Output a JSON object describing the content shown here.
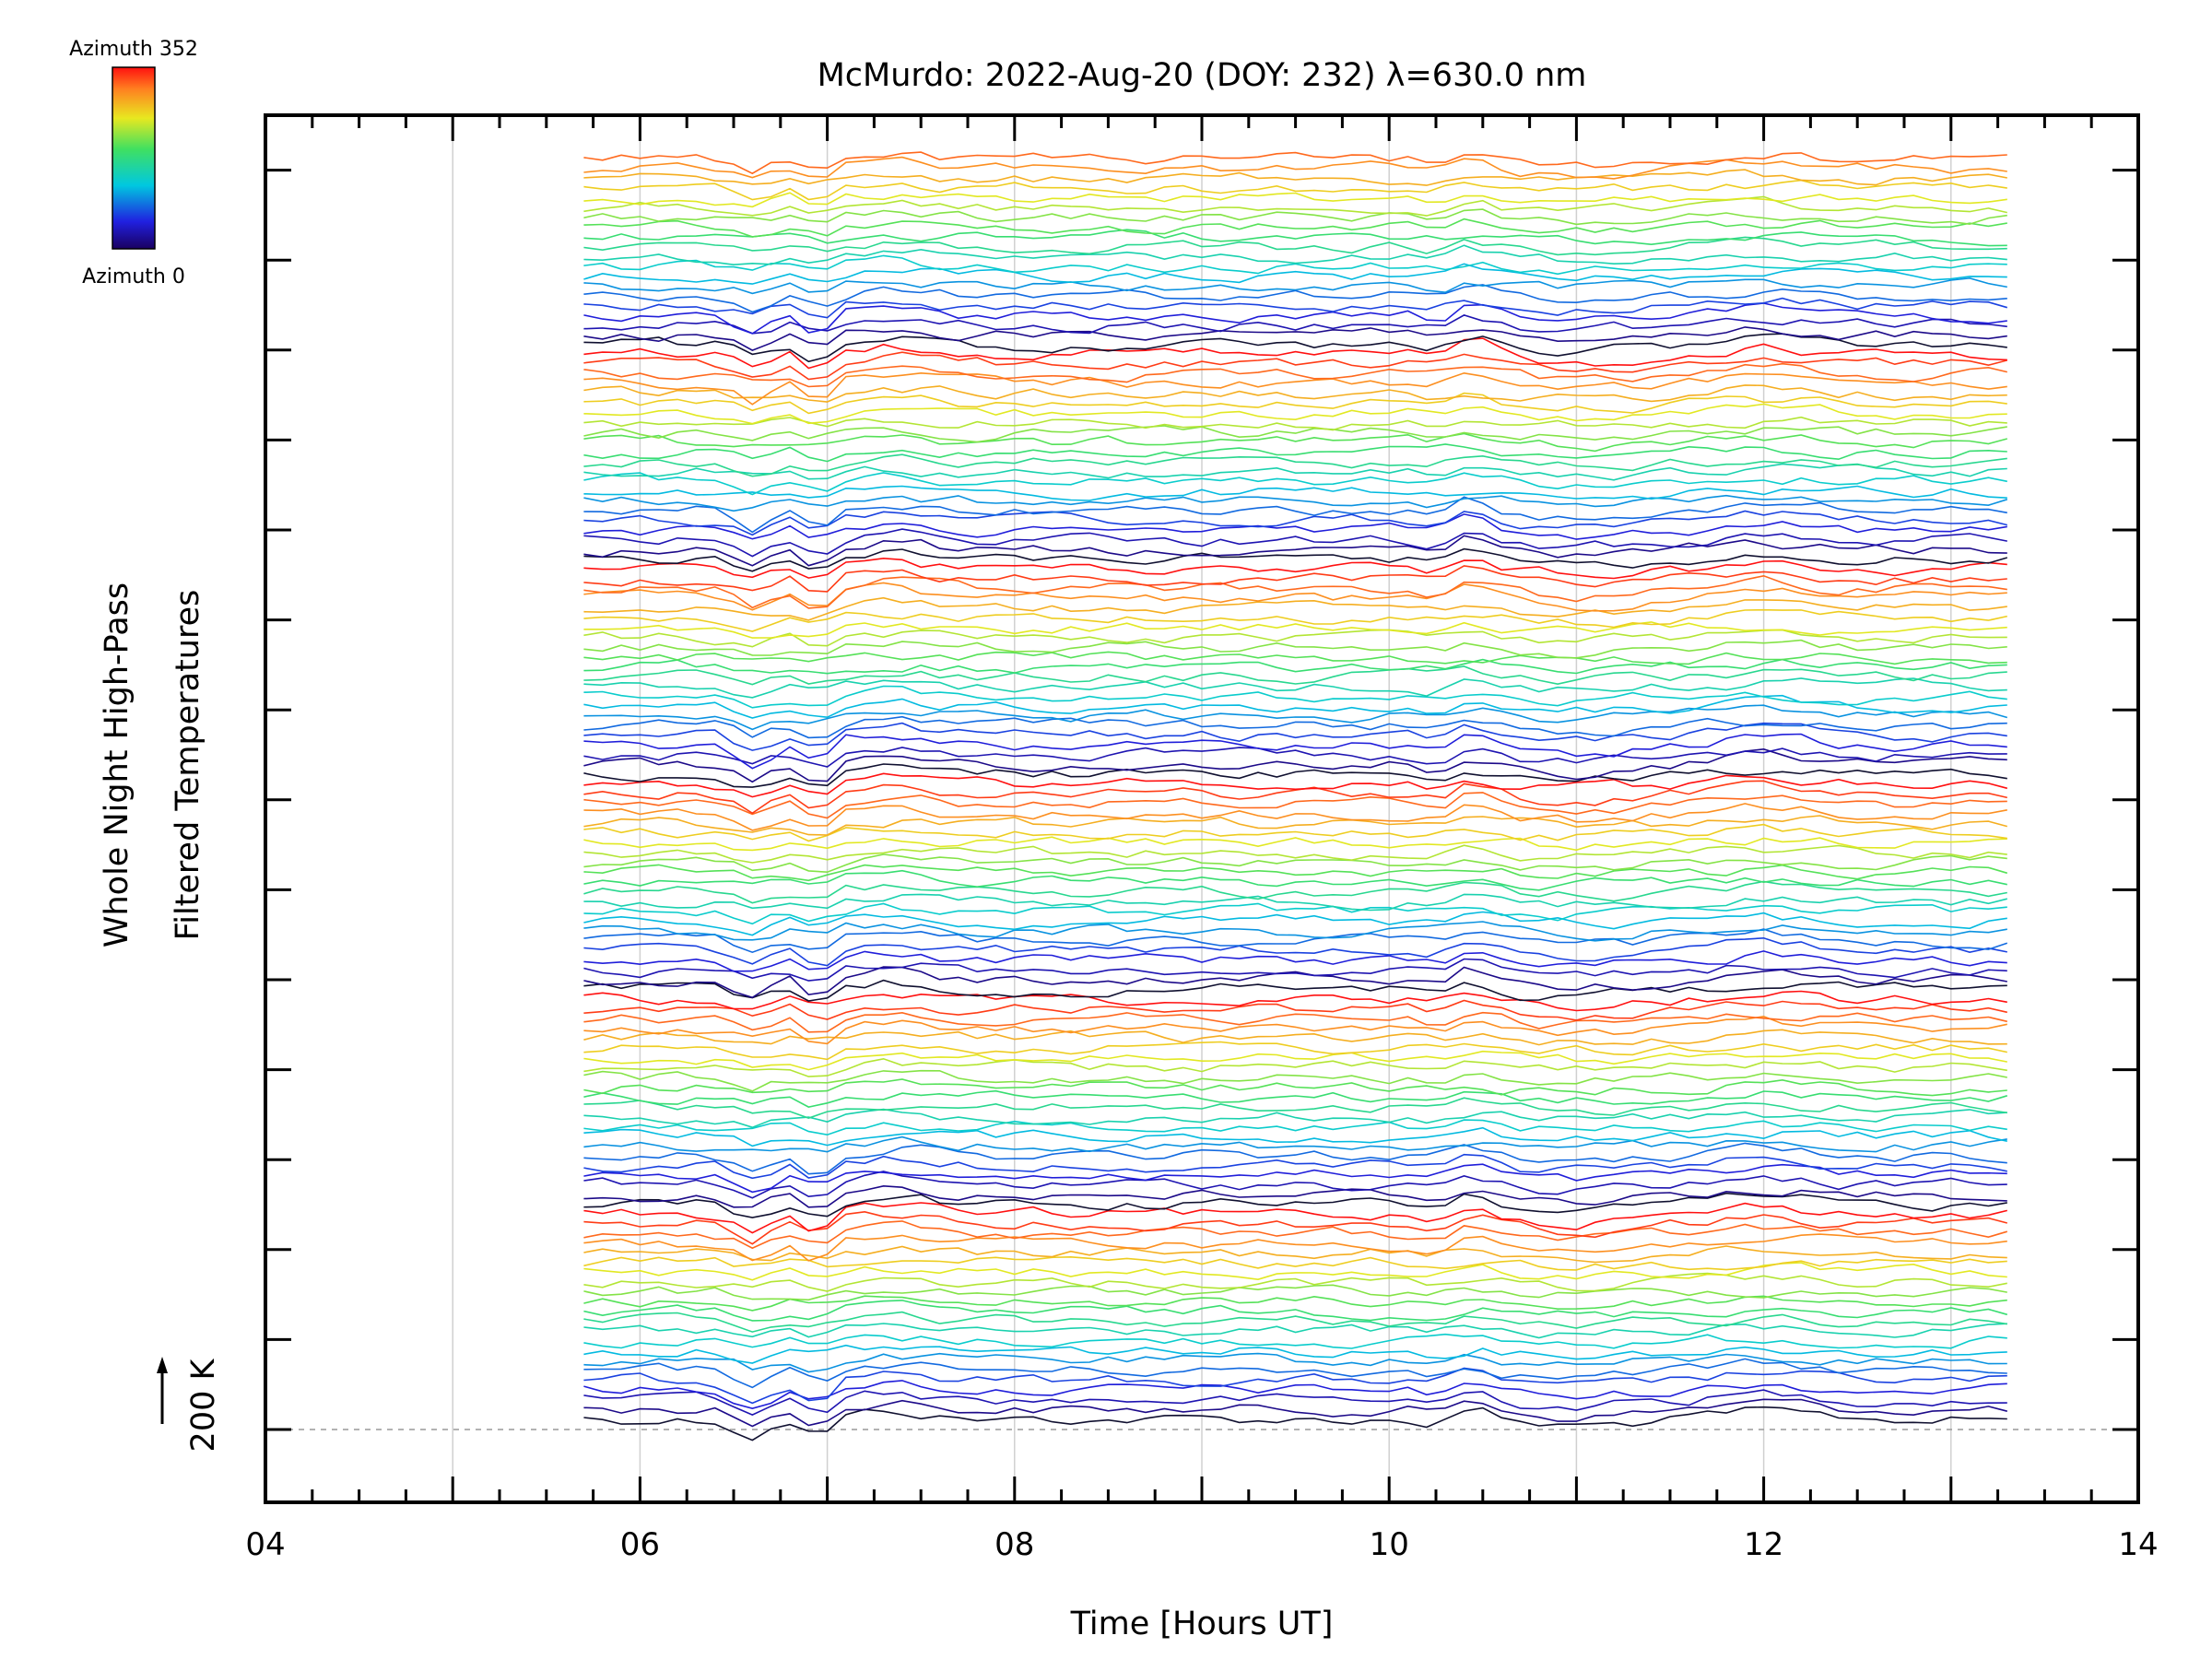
{
  "chart_data": {
    "type": "line",
    "title": "McMurdo: 2022-Aug-20 (DOY: 232) λ=630.0 nm",
    "xlabel": "Time [Hours UT]",
    "ylabel_line1": "Whole Night High-Pass",
    "ylabel_line2": "Filtered Temperatures",
    "scale_bar_label": "200 K",
    "x_tick_labels": [
      "04",
      "06",
      "08",
      "10",
      "12",
      "14"
    ],
    "x_ticks": [
      4,
      6,
      8,
      10,
      12,
      14
    ],
    "xlim": [
      4,
      14
    ],
    "data_time_range": [
      5.7,
      13.3
    ],
    "vertical_gridlines": true,
    "colorbar": {
      "top_label": "Azimuth 352",
      "bottom_label": "Azimuth 0",
      "azimuth_range": [
        0,
        352
      ],
      "position": "top-left"
    },
    "series_description": "Stacked high-pass filtered temperature traces, one per azimuth, colored by azimuth; offset vertically in groups",
    "num_traces": 130
  }
}
